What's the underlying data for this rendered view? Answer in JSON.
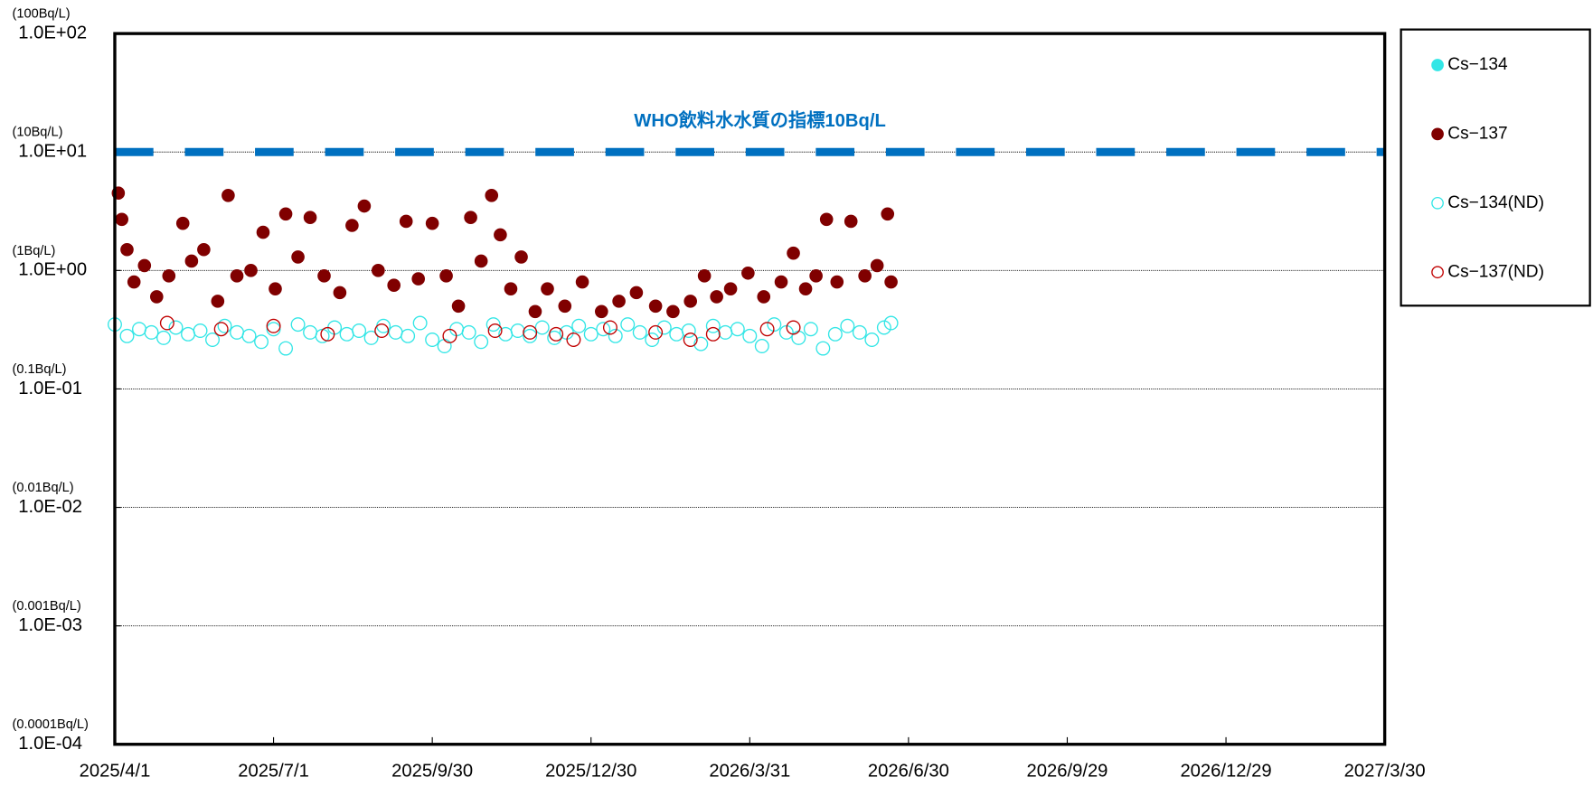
{
  "chart_data": {
    "type": "scatter",
    "log_y": true,
    "grid": true,
    "xlim": [
      "2025/4/1",
      "2027/3/30"
    ],
    "xticks": [
      "2025/4/1",
      "2025/7/1",
      "2025/9/30",
      "2025/12/30",
      "2026/3/31",
      "2026/6/30",
      "2026/9/29",
      "2026/12/29",
      "2027/3/30"
    ],
    "ylim": [
      0.0001,
      100
    ],
    "yticks": [
      {
        "value": 0.0001,
        "label": "1.0E-04"
      },
      {
        "value": 0.001,
        "label": "1.0E-03"
      },
      {
        "value": 0.01,
        "label": "1.0E-02"
      },
      {
        "value": 0.1,
        "label": "1.0E-01"
      },
      {
        "value": 1,
        "label": "1.0E+00"
      },
      {
        "value": 10,
        "label": "1.0E+01"
      },
      {
        "value": 100,
        "label": "1.0E+02"
      }
    ],
    "ytick_units": [
      "(0.0001Bq/L)",
      "(0.001Bq/L)",
      "(0.01Bq/L)",
      "(0.1Bq/L)",
      "(1Bq/L)",
      "(10Bq/L)",
      "(100Bq/L)"
    ],
    "reference_line": {
      "value": 10,
      "label": "WHO飲料水水質の指標10Bq/L",
      "color": "#0070c0"
    },
    "series": [
      {
        "name": "Cs−134",
        "color": "#33e6e6",
        "filled": true,
        "x": [],
        "values": []
      },
      {
        "name": "Cs−137",
        "color": "#800000",
        "filled": true,
        "x": [
          "2025/4/3",
          "2025/4/5",
          "2025/4/8",
          "2025/4/12",
          "2025/4/18",
          "2025/4/25",
          "2025/5/2",
          "2025/5/10",
          "2025/5/15",
          "2025/5/22",
          "2025/5/30",
          "2025/6/5",
          "2025/6/10",
          "2025/6/18",
          "2025/6/25",
          "2025/7/2",
          "2025/7/8",
          "2025/7/15",
          "2025/7/22",
          "2025/7/30",
          "2025/8/8",
          "2025/8/15",
          "2025/8/22",
          "2025/8/30",
          "2025/9/8",
          "2025/9/15",
          "2025/9/22",
          "2025/9/30",
          "2025/10/8",
          "2025/10/15",
          "2025/10/22",
          "2025/10/28",
          "2025/11/3",
          "2025/11/8",
          "2025/11/14",
          "2025/11/20",
          "2025/11/28",
          "2025/12/5",
          "2025/12/15",
          "2025/12/25",
          "2026/1/5",
          "2026/1/15",
          "2026/1/25",
          "2026/2/5",
          "2026/2/15",
          "2026/2/25",
          "2026/3/5",
          "2026/3/12",
          "2026/3/20",
          "2026/3/30",
          "2026/4/8",
          "2026/4/18",
          "2026/4/25",
          "2026/5/2",
          "2026/5/8",
          "2026/5/14",
          "2026/5/20",
          "2026/5/28",
          "2026/6/5",
          "2026/6/12",
          "2026/6/18",
          "2026/6/20"
        ],
        "values": [
          4.5,
          2.7,
          1.5,
          0.8,
          1.1,
          0.6,
          0.9,
          2.5,
          1.2,
          1.5,
          0.55,
          4.3,
          0.9,
          1.0,
          2.1,
          0.7,
          3.0,
          1.3,
          2.8,
          0.9,
          0.65,
          2.4,
          3.5,
          1.0,
          0.75,
          2.6,
          0.85,
          2.5,
          0.9,
          0.5,
          2.8,
          1.2,
          4.3,
          2.0,
          0.7,
          1.3,
          0.45,
          0.7,
          0.5,
          0.8,
          0.45,
          0.55,
          0.65,
          0.5,
          0.45,
          0.55,
          0.9,
          0.6,
          0.7,
          0.95,
          0.6,
          0.8,
          1.4,
          0.7,
          0.9,
          2.7,
          0.8,
          2.6,
          0.9,
          1.1,
          3.0,
          0.8
        ]
      },
      {
        "name": "Cs−134(ND)",
        "color": "#33e6e6",
        "filled": false,
        "x": [
          "2025/4/1",
          "2025/4/8",
          "2025/4/15",
          "2025/4/22",
          "2025/4/29",
          "2025/5/6",
          "2025/5/13",
          "2025/5/20",
          "2025/5/27",
          "2025/6/3",
          "2025/6/10",
          "2025/6/17",
          "2025/6/24",
          "2025/7/1",
          "2025/7/8",
          "2025/7/15",
          "2025/7/22",
          "2025/7/29",
          "2025/8/5",
          "2025/8/12",
          "2025/8/19",
          "2025/8/26",
          "2025/9/2",
          "2025/9/9",
          "2025/9/16",
          "2025/9/23",
          "2025/9/30",
          "2025/10/7",
          "2025/10/14",
          "2025/10/21",
          "2025/10/28",
          "2025/11/4",
          "2025/11/11",
          "2025/11/18",
          "2025/11/25",
          "2025/12/2",
          "2025/12/9",
          "2025/12/16",
          "2025/12/23",
          "2025/12/30",
          "2026/1/6",
          "2026/1/13",
          "2026/1/20",
          "2026/1/27",
          "2026/2/3",
          "2026/2/10",
          "2026/2/17",
          "2026/2/24",
          "2026/3/3",
          "2026/3/10",
          "2026/3/17",
          "2026/3/24",
          "2026/3/31",
          "2026/4/7",
          "2026/4/14",
          "2026/4/21",
          "2026/4/28",
          "2026/5/5",
          "2026/5/12",
          "2026/5/19",
          "2026/5/26",
          "2026/6/2",
          "2026/6/9",
          "2026/6/16",
          "2026/6/20"
        ],
        "values": [
          0.35,
          0.28,
          0.32,
          0.3,
          0.27,
          0.33,
          0.29,
          0.31,
          0.26,
          0.34,
          0.3,
          0.28,
          0.25,
          0.32,
          0.22,
          0.35,
          0.3,
          0.28,
          0.33,
          0.29,
          0.31,
          0.27,
          0.34,
          0.3,
          0.28,
          0.36,
          0.26,
          0.23,
          0.32,
          0.3,
          0.25,
          0.35,
          0.29,
          0.31,
          0.28,
          0.33,
          0.27,
          0.3,
          0.34,
          0.29,
          0.32,
          0.28,
          0.35,
          0.3,
          0.26,
          0.33,
          0.29,
          0.31,
          0.24,
          0.34,
          0.3,
          0.32,
          0.28,
          0.23,
          0.35,
          0.3,
          0.27,
          0.32,
          0.22,
          0.29,
          0.34,
          0.3,
          0.26,
          0.33,
          0.36
        ]
      },
      {
        "name": "Cs−137(ND)",
        "color": "#c00000",
        "filled": false,
        "x": [
          "2025/5/1",
          "2025/6/1",
          "2025/7/1",
          "2025/8/1",
          "2025/9/1",
          "2025/10/10",
          "2025/11/5",
          "2025/11/25",
          "2025/12/10",
          "2025/12/20",
          "2026/1/10",
          "2026/2/5",
          "2026/2/25",
          "2026/3/10",
          "2026/4/10",
          "2026/4/25"
        ],
        "values": [
          0.36,
          0.32,
          0.34,
          0.29,
          0.31,
          0.28,
          0.31,
          0.3,
          0.29,
          0.26,
          0.33,
          0.3,
          0.26,
          0.29,
          0.32,
          0.33
        ]
      }
    ]
  }
}
